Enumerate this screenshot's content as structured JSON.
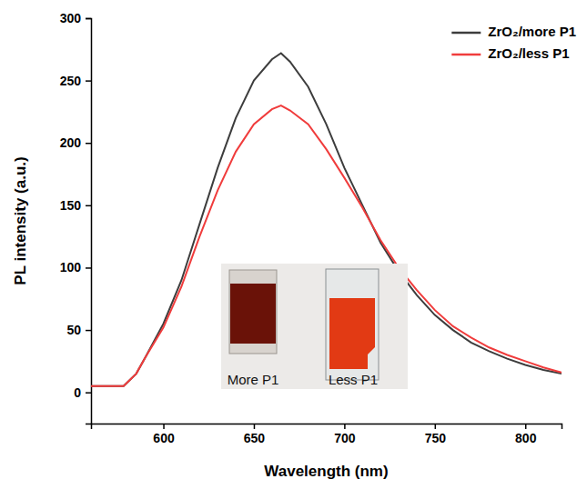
{
  "chart_data": {
    "type": "line",
    "x_label": "Wavelength (nm)",
    "y_label": "PL intensity (a.u.)",
    "x": [
      560,
      570,
      578,
      585,
      590,
      600,
      610,
      620,
      630,
      640,
      650,
      660,
      665,
      670,
      680,
      690,
      700,
      710,
      720,
      730,
      740,
      750,
      760,
      770,
      780,
      790,
      800,
      810,
      820
    ],
    "series": [
      {
        "name": "ZrO₂/more P1",
        "color": "#3d3d3d",
        "values": [
          5,
          5,
          5,
          15,
          28,
          55,
          90,
          135,
          180,
          220,
          250,
          267,
          272,
          265,
          245,
          215,
          180,
          150,
          120,
          97,
          78,
          62,
          50,
          40,
          33,
          27,
          22,
          18,
          15
        ]
      },
      {
        "name": "ZrO₂/less P1",
        "color": "#f03c3c",
        "values": [
          5,
          5,
          5,
          15,
          28,
          52,
          85,
          125,
          162,
          193,
          215,
          227,
          230,
          226,
          215,
          195,
          172,
          148,
          122,
          100,
          82,
          66,
          53,
          44,
          36,
          30,
          25,
          20,
          16
        ]
      }
    ],
    "xlim": [
      560,
      820
    ],
    "xticks": [
      600,
      650,
      700,
      750,
      800
    ],
    "ylim": [
      -25,
      300
    ],
    "yticks": [
      0,
      50,
      100,
      150,
      200,
      250,
      300
    ],
    "legend": "top-right",
    "annotations": [
      {
        "text": "More P1"
      },
      {
        "text": "Less P1"
      }
    ]
  }
}
